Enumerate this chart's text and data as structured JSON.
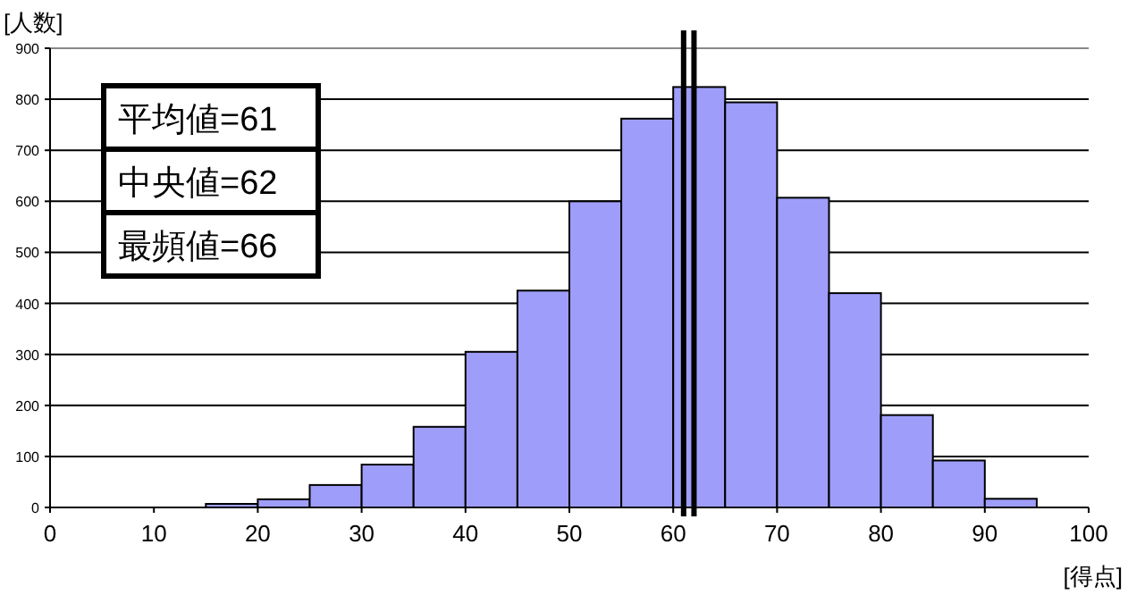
{
  "chart_data": {
    "type": "histogram",
    "ylabel": "[人数]",
    "xlabel": "[得点]",
    "bins": [
      15,
      20,
      25,
      30,
      35,
      40,
      45,
      50,
      55,
      60,
      65,
      70,
      75,
      80,
      85,
      90,
      95
    ],
    "values": [
      7,
      16,
      44,
      84,
      158,
      305,
      425,
      600,
      762,
      824,
      794,
      607,
      420,
      181,
      92,
      17
    ],
    "color": "#9e9efa",
    "xlim": [
      0,
      100
    ],
    "xticks": [
      0,
      10,
      20,
      30,
      40,
      50,
      60,
      70,
      80,
      90,
      100
    ],
    "ylim": [
      0,
      900
    ],
    "yticks": [
      0,
      100,
      200,
      300,
      400,
      500,
      600,
      700,
      800,
      900
    ],
    "grid": "y",
    "ref_lines": [
      {
        "axis": "x",
        "value": 61,
        "color": "#000000"
      },
      {
        "axis": "x",
        "value": 62,
        "color": "#000000"
      }
    ],
    "annotations": [
      "平均値=61",
      "中央値=62",
      "最頻値=66"
    ]
  }
}
